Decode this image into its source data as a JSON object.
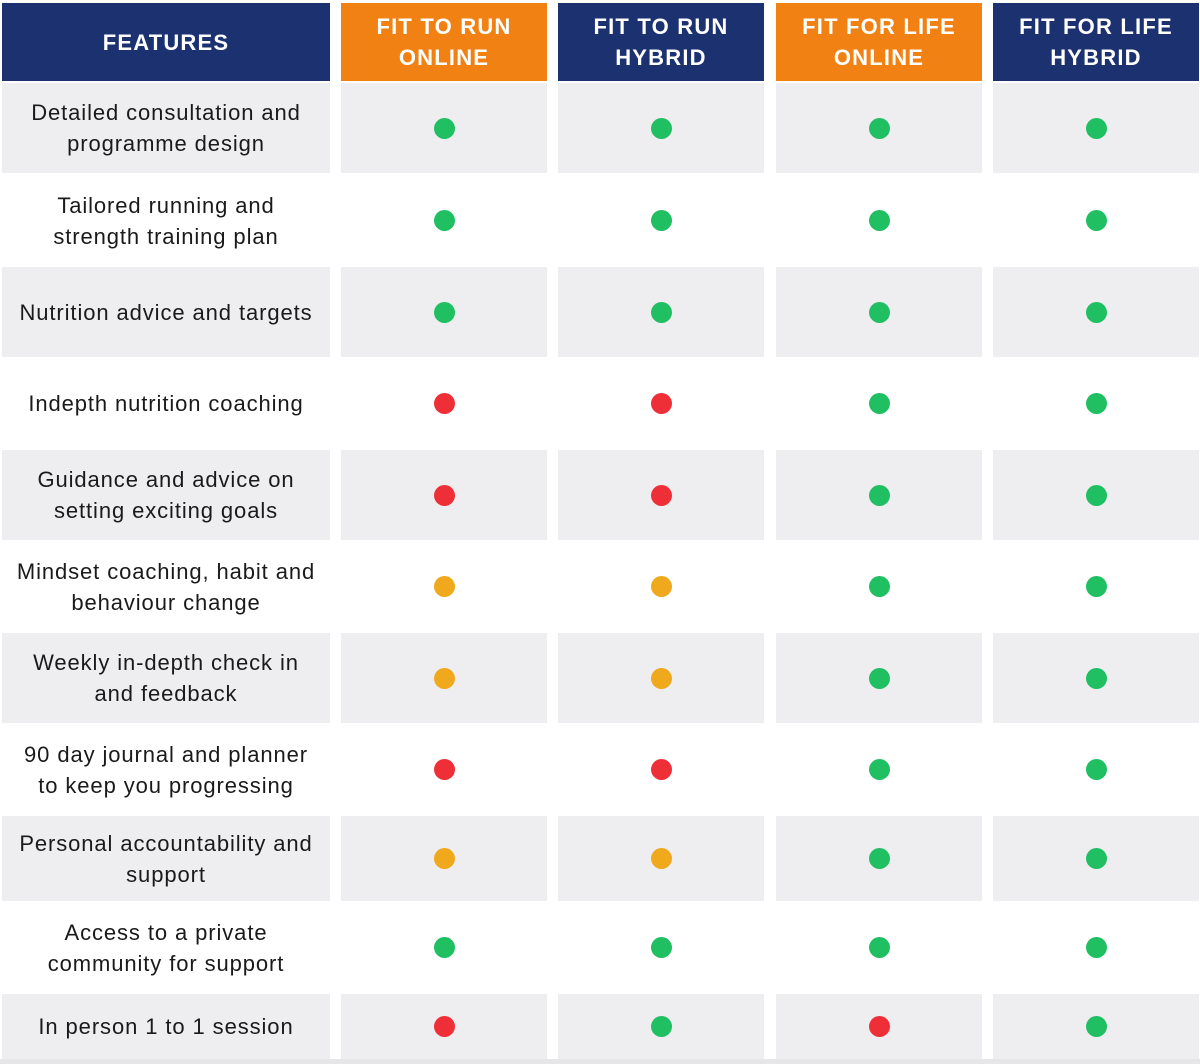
{
  "colors": {
    "navy": "#1b3170",
    "orange": "#f28113",
    "shaded_row": "#eeeef1",
    "plain_row": "#ffffff",
    "status_yes": "#1fbf62",
    "status_no": "#ee2f37",
    "status_partial": "#f0a81c"
  },
  "header": {
    "features_label": "FEATURES",
    "plans": [
      {
        "lines": [
          "FIT TO RUN",
          "ONLINE"
        ],
        "color": "orange"
      },
      {
        "lines": [
          "FIT TO RUN",
          "HYBRID"
        ],
        "color": "navy"
      },
      {
        "lines": [
          "FIT FOR LIFE",
          "ONLINE"
        ],
        "color": "orange"
      },
      {
        "lines": [
          "FIT FOR LIFE",
          "HYBRID"
        ],
        "color": "navy"
      }
    ]
  },
  "rows": [
    {
      "lines": [
        "Detailed consultation and",
        "programme design"
      ],
      "status": [
        "yes",
        "yes",
        "yes",
        "yes"
      ]
    },
    {
      "lines": [
        "Tailored running and",
        "strength training plan"
      ],
      "status": [
        "yes",
        "yes",
        "yes",
        "yes"
      ]
    },
    {
      "lines": [
        "Nutrition advice and targets"
      ],
      "status": [
        "yes",
        "yes",
        "yes",
        "yes"
      ]
    },
    {
      "lines": [
        "Indepth nutrition coaching"
      ],
      "status": [
        "no",
        "no",
        "yes",
        "yes"
      ]
    },
    {
      "lines": [
        "Guidance and advice on",
        "setting exciting goals"
      ],
      "status": [
        "no",
        "no",
        "yes",
        "yes"
      ]
    },
    {
      "lines": [
        "Mindset coaching, habit and",
        "behaviour change"
      ],
      "status": [
        "partial",
        "partial",
        "yes",
        "yes"
      ]
    },
    {
      "lines": [
        "Weekly in-depth check in",
        "and feedback"
      ],
      "status": [
        "partial",
        "partial",
        "yes",
        "yes"
      ]
    },
    {
      "lines": [
        "90 day journal and planner",
        "to keep you progressing"
      ],
      "status": [
        "no",
        "no",
        "yes",
        "yes"
      ]
    },
    {
      "lines": [
        "Personal accountability and",
        "support"
      ],
      "status": [
        "partial",
        "partial",
        "yes",
        "yes"
      ]
    },
    {
      "lines": [
        "Access to a private",
        "community for support"
      ],
      "status": [
        "yes",
        "yes",
        "yes",
        "yes"
      ]
    },
    {
      "lines": [
        "In person 1 to 1 session"
      ],
      "status": [
        "no",
        "yes",
        "no",
        "yes"
      ]
    }
  ]
}
